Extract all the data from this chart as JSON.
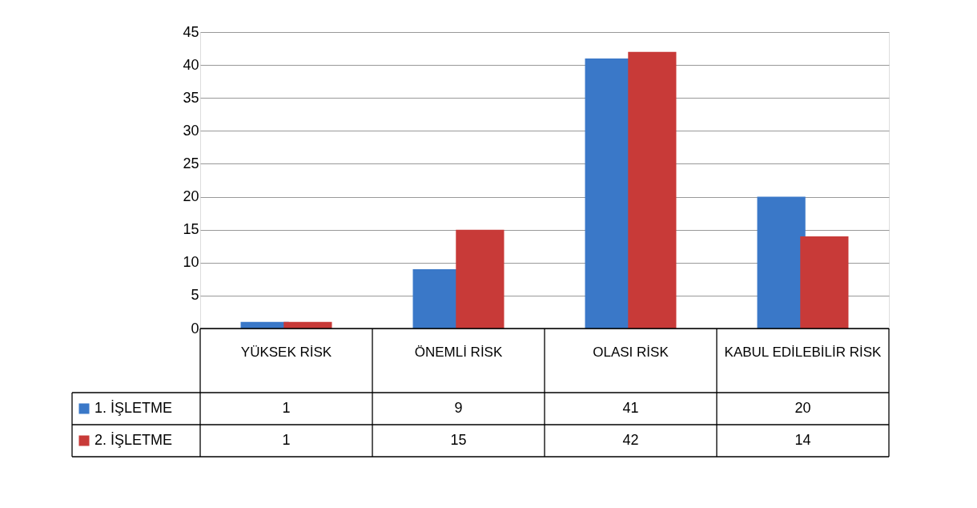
{
  "chart_data": {
    "type": "bar",
    "categories": [
      "YÜKSEK RİSK",
      "ÖNEMLİ RİSK",
      "OLASI RİSK",
      "KABUL EDİLEBİLİR RİSK"
    ],
    "series": [
      {
        "name": "1. İŞLETME",
        "color": "#3a78c8",
        "values": [
          1,
          9,
          41,
          20
        ]
      },
      {
        "name": "2. İŞLETME",
        "color": "#c83a38",
        "values": [
          1,
          15,
          42,
          14
        ]
      }
    ],
    "ylim": [
      0,
      45
    ],
    "yticks": [
      0,
      5,
      10,
      15,
      20,
      25,
      30,
      35,
      40,
      45
    ],
    "grid": "y",
    "legend": "bottom",
    "data_labels": true
  }
}
